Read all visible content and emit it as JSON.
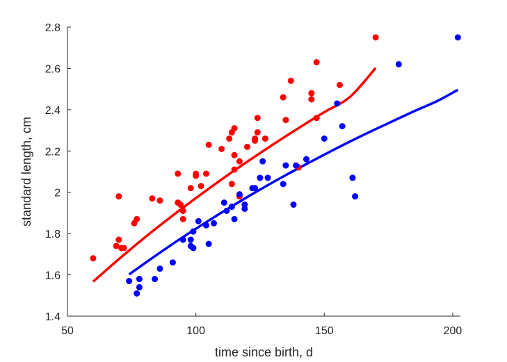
{
  "chart_data": {
    "type": "scatter",
    "title": "",
    "xlabel": "time since birth, d",
    "ylabel": "standard length, cm",
    "xlim": [
      50,
      203
    ],
    "ylim": [
      1.4,
      2.8
    ],
    "xticks": [
      50,
      100,
      150,
      200
    ],
    "xtick_labels": [
      "50",
      "100",
      "150",
      "200"
    ],
    "yticks": [
      1.4,
      1.6,
      1.8,
      2.0,
      2.2,
      2.4,
      2.6,
      2.8
    ],
    "ytick_labels": [
      "1.4",
      "1.6",
      "1.8",
      "2",
      "2.2",
      "2.4",
      "2.6",
      "2.8"
    ],
    "grid": false,
    "legend": "none",
    "series": [
      {
        "color": "#ff0000",
        "points": [
          [
            60,
            1.68
          ],
          [
            69,
            1.74
          ],
          [
            70,
            1.98
          ],
          [
            70,
            1.77
          ],
          [
            71,
            1.73
          ],
          [
            72,
            1.73
          ],
          [
            76,
            1.85
          ],
          [
            77,
            1.87
          ],
          [
            83,
            1.97
          ],
          [
            86,
            1.96
          ],
          [
            93,
            2.09
          ],
          [
            93,
            1.95
          ],
          [
            94,
            1.94
          ],
          [
            95,
            1.91
          ],
          [
            95,
            1.87
          ],
          [
            98,
            2.02
          ],
          [
            100,
            2.09
          ],
          [
            100,
            2.08
          ],
          [
            102,
            2.03
          ],
          [
            104,
            2.09
          ],
          [
            105,
            2.23
          ],
          [
            110,
            2.21
          ],
          [
            113,
            2.26
          ],
          [
            114,
            2.04
          ],
          [
            114,
            2.29
          ],
          [
            115,
            2.31
          ],
          [
            115,
            2.18
          ],
          [
            115,
            2.11
          ],
          [
            117,
            2.15
          ],
          [
            117,
            1.98
          ],
          [
            120,
            2.22
          ],
          [
            123,
            2.25
          ],
          [
            123,
            2.26
          ],
          [
            124,
            2.36
          ],
          [
            124,
            2.29
          ],
          [
            127,
            2.26
          ],
          [
            134,
            2.46
          ],
          [
            135,
            2.35
          ],
          [
            137,
            2.54
          ],
          [
            140,
            2.12
          ],
          [
            145,
            2.48
          ],
          [
            145,
            2.45
          ],
          [
            147,
            2.63
          ],
          [
            147,
            2.36
          ],
          [
            156,
            2.52
          ],
          [
            170,
            2.75
          ]
        ],
        "curve": [
          [
            60,
            1.567
          ],
          [
            70,
            1.676
          ],
          [
            80,
            1.78
          ],
          [
            90,
            1.878
          ],
          [
            100,
            1.972
          ],
          [
            110,
            2.062
          ],
          [
            120,
            2.148
          ],
          [
            130,
            2.231
          ],
          [
            140,
            2.311
          ],
          [
            150,
            2.388
          ],
          [
            160,
            2.462
          ],
          [
            170,
            2.602
          ]
        ]
      },
      {
        "color": "#0000ff",
        "points": [
          [
            74,
            1.57
          ],
          [
            77,
            1.51
          ],
          [
            78,
            1.58
          ],
          [
            78,
            1.54
          ],
          [
            84,
            1.58
          ],
          [
            86,
            1.63
          ],
          [
            91,
            1.66
          ],
          [
            95,
            1.77
          ],
          [
            98,
            1.77
          ],
          [
            98,
            1.74
          ],
          [
            99,
            1.81
          ],
          [
            99,
            1.73
          ],
          [
            101,
            1.86
          ],
          [
            104,
            1.84
          ],
          [
            105,
            1.75
          ],
          [
            107,
            1.85
          ],
          [
            111,
            1.95
          ],
          [
            112,
            1.91
          ],
          [
            114,
            1.93
          ],
          [
            115,
            1.87
          ],
          [
            117,
            1.99
          ],
          [
            119,
            1.94
          ],
          [
            119,
            1.92
          ],
          [
            122,
            2.02
          ],
          [
            123,
            2.02
          ],
          [
            125,
            2.07
          ],
          [
            126,
            2.15
          ],
          [
            128,
            2.07
          ],
          [
            134,
            2.04
          ],
          [
            135,
            2.13
          ],
          [
            138,
            1.94
          ],
          [
            139,
            2.13
          ],
          [
            143,
            2.16
          ],
          [
            150,
            2.26
          ],
          [
            155,
            2.43
          ],
          [
            157,
            2.32
          ],
          [
            161,
            2.07
          ],
          [
            162,
            1.98
          ],
          [
            179,
            2.62
          ],
          [
            202,
            2.75
          ]
        ],
        "curve": [
          [
            74,
            1.602
          ],
          [
            84,
            1.69
          ],
          [
            94,
            1.775
          ],
          [
            104,
            1.855
          ],
          [
            114,
            1.932
          ],
          [
            124,
            2.006
          ],
          [
            134,
            2.076
          ],
          [
            144,
            2.143
          ],
          [
            154,
            2.208
          ],
          [
            164,
            2.27
          ],
          [
            174,
            2.329
          ],
          [
            184,
            2.387
          ],
          [
            194,
            2.442
          ],
          [
            202,
            2.496
          ]
        ]
      }
    ]
  }
}
